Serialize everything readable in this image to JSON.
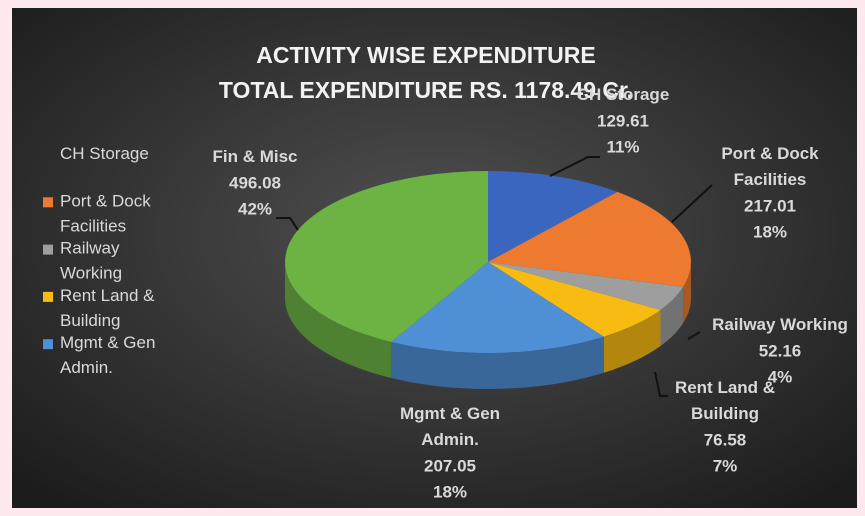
{
  "chart_data": {
    "type": "pie3d",
    "title": "ACTIVITY WISE EXPENDITURE",
    "subtitle": "TOTAL EXPENDITURE RS. 1178.49 Cr.",
    "categories": [
      "CH Storage",
      "Port & Dock Facilities",
      "Railway Working",
      "Rent Land & Building",
      "Mgmt & Gen Admin.",
      "Fin & Misc"
    ],
    "values": [
      129.61,
      217.01,
      52.16,
      76.58,
      207.05,
      496.08
    ],
    "percent_labels": [
      "11%",
      "18%",
      "4%",
      "7%",
      "18%",
      "42%"
    ],
    "colors": [
      "#3a66c0",
      "#ee7a30",
      "#9e9e9e",
      "#f8bb12",
      "#4f8fd6",
      "#6cb344"
    ],
    "legend": [
      "CH Storage",
      "Port & Dock Facilities",
      "Railway Working",
      "Rent Land & Building",
      "Mgmt & Gen Admin."
    ],
    "legend_position": "left"
  }
}
